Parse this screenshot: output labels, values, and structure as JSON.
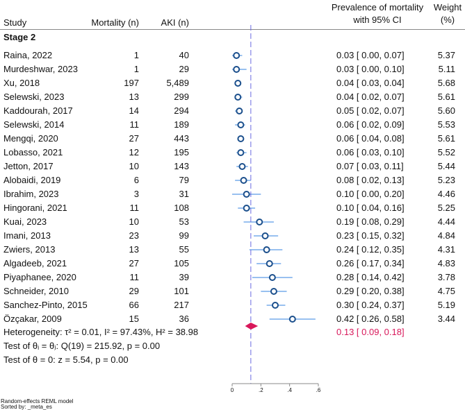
{
  "chart_data": {
    "type": "forest",
    "headers": {
      "study": "Study",
      "mortality": "Mortality (n)",
      "aki": "AKI (n)",
      "prevalence_line1": "Prevalence of mortality",
      "prevalence_line2": "with 95% CI",
      "weight_line1": "Weight",
      "weight_line2": "(%)"
    },
    "group": "Stage 2",
    "studies": [
      {
        "study": "Raina, 2022",
        "mortality": "1",
        "aki": "40",
        "es": 0.03,
        "lo": 0.0,
        "hi": 0.07,
        "ci": "0.03 [ 0.00, 0.07]",
        "weight": "5.37"
      },
      {
        "study": "Murdeshwar, 2023",
        "mortality": "1",
        "aki": "29",
        "es": 0.03,
        "lo": 0.0,
        "hi": 0.1,
        "ci": "0.03 [ 0.00, 0.10]",
        "weight": "5.11"
      },
      {
        "study": "Xu, 2018",
        "mortality": "197",
        "aki": "5,489",
        "es": 0.04,
        "lo": 0.03,
        "hi": 0.04,
        "ci": "0.04 [ 0.03, 0.04]",
        "weight": "5.68"
      },
      {
        "study": "Selewski, 2023",
        "mortality": "13",
        "aki": "299",
        "es": 0.04,
        "lo": 0.02,
        "hi": 0.07,
        "ci": "0.04 [ 0.02, 0.07]",
        "weight": "5.61"
      },
      {
        "study": "Kaddourah, 2017",
        "mortality": "14",
        "aki": "294",
        "es": 0.05,
        "lo": 0.02,
        "hi": 0.07,
        "ci": "0.05 [ 0.02, 0.07]",
        "weight": "5.60"
      },
      {
        "study": "Selewski, 2014",
        "mortality": "11",
        "aki": "189",
        "es": 0.06,
        "lo": 0.02,
        "hi": 0.09,
        "ci": "0.06 [ 0.02, 0.09]",
        "weight": "5.53"
      },
      {
        "study": "Mengqi, 2020",
        "mortality": "27",
        "aki": "443",
        "es": 0.06,
        "lo": 0.04,
        "hi": 0.08,
        "ci": "0.06 [ 0.04, 0.08]",
        "weight": "5.61"
      },
      {
        "study": "Lobasso, 2021",
        "mortality": "12",
        "aki": "195",
        "es": 0.06,
        "lo": 0.03,
        "hi": 0.1,
        "ci": "0.06 [ 0.03, 0.10]",
        "weight": "5.52"
      },
      {
        "study": "Jetton, 2017",
        "mortality": "10",
        "aki": "143",
        "es": 0.07,
        "lo": 0.03,
        "hi": 0.11,
        "ci": "0.07 [ 0.03, 0.11]",
        "weight": "5.44"
      },
      {
        "study": "Alobaidi, 2019",
        "mortality": "6",
        "aki": "79",
        "es": 0.08,
        "lo": 0.02,
        "hi": 0.13,
        "ci": "0.08 [ 0.02, 0.13]",
        "weight": "5.23"
      },
      {
        "study": "Ibrahim, 2023",
        "mortality": "3",
        "aki": "31",
        "es": 0.1,
        "lo": 0.0,
        "hi": 0.2,
        "ci": "0.10 [ 0.00, 0.20]",
        "weight": "4.46"
      },
      {
        "study": "Hingorani, 2021",
        "mortality": "11",
        "aki": "108",
        "es": 0.1,
        "lo": 0.04,
        "hi": 0.16,
        "ci": "0.10 [ 0.04, 0.16]",
        "weight": "5.25"
      },
      {
        "study": "Kuai, 2023",
        "mortality": "10",
        "aki": "53",
        "es": 0.19,
        "lo": 0.08,
        "hi": 0.29,
        "ci": "0.19 [ 0.08, 0.29]",
        "weight": "4.44"
      },
      {
        "study": "Imani, 2013",
        "mortality": "23",
        "aki": "99",
        "es": 0.23,
        "lo": 0.15,
        "hi": 0.32,
        "ci": "0.23 [ 0.15, 0.32]",
        "weight": "4.84"
      },
      {
        "study": "Zwiers, 2013",
        "mortality": "13",
        "aki": "55",
        "es": 0.24,
        "lo": 0.12,
        "hi": 0.35,
        "ci": "0.24 [ 0.12, 0.35]",
        "weight": "4.31"
      },
      {
        "study": "Algadeeb, 2021",
        "mortality": "27",
        "aki": "105",
        "es": 0.26,
        "lo": 0.17,
        "hi": 0.34,
        "ci": "0.26 [ 0.17, 0.34]",
        "weight": "4.83"
      },
      {
        "study": "Piyaphanee, 2020",
        "mortality": "11",
        "aki": "39",
        "es": 0.28,
        "lo": 0.14,
        "hi": 0.42,
        "ci": "0.28 [ 0.14, 0.42]",
        "weight": "3.78"
      },
      {
        "study": "Schneider, 2010",
        "mortality": "29",
        "aki": "101",
        "es": 0.29,
        "lo": 0.2,
        "hi": 0.38,
        "ci": "0.29 [ 0.20, 0.38]",
        "weight": "4.75"
      },
      {
        "study": "Sanchez-Pinto, 2015",
        "mortality": "66",
        "aki": "217",
        "es": 0.3,
        "lo": 0.24,
        "hi": 0.37,
        "ci": "0.30 [ 0.24, 0.37]",
        "weight": "5.19"
      },
      {
        "study": "Özçakar, 2009",
        "mortality": "15",
        "aki": "36",
        "es": 0.42,
        "lo": 0.26,
        "hi": 0.58,
        "ci": "0.42 [ 0.26, 0.58]",
        "weight": "3.44"
      }
    ],
    "overall": {
      "es": 0.13,
      "lo": 0.09,
      "hi": 0.18,
      "ci": "0.13 [ 0.09, 0.18]"
    },
    "heterogeneity": "Heterogeneity: τ² = 0.01, I² = 97.43%, H² = 38.98",
    "test_homogeneity": "Test of θᵢ = θⱼ: Q(19) = 215.92, p = 0.00",
    "test_zero": "Test of θ = 0: z = 5.54, p = 0.00",
    "xaxis": {
      "range": [
        0,
        0.6
      ],
      "ticks": [
        0,
        0.2,
        0.4,
        0.6
      ],
      "tick_labels": [
        "0",
        ".2",
        ".4",
        ".6"
      ]
    },
    "footnotes": [
      "Random-effects REML model",
      "Sorted by: _meta_es"
    ],
    "colors": {
      "marker": "#1b4f8c",
      "ci": "#5a9be6",
      "overall": "#d8175a",
      "refline": "#6a6ae0"
    }
  }
}
